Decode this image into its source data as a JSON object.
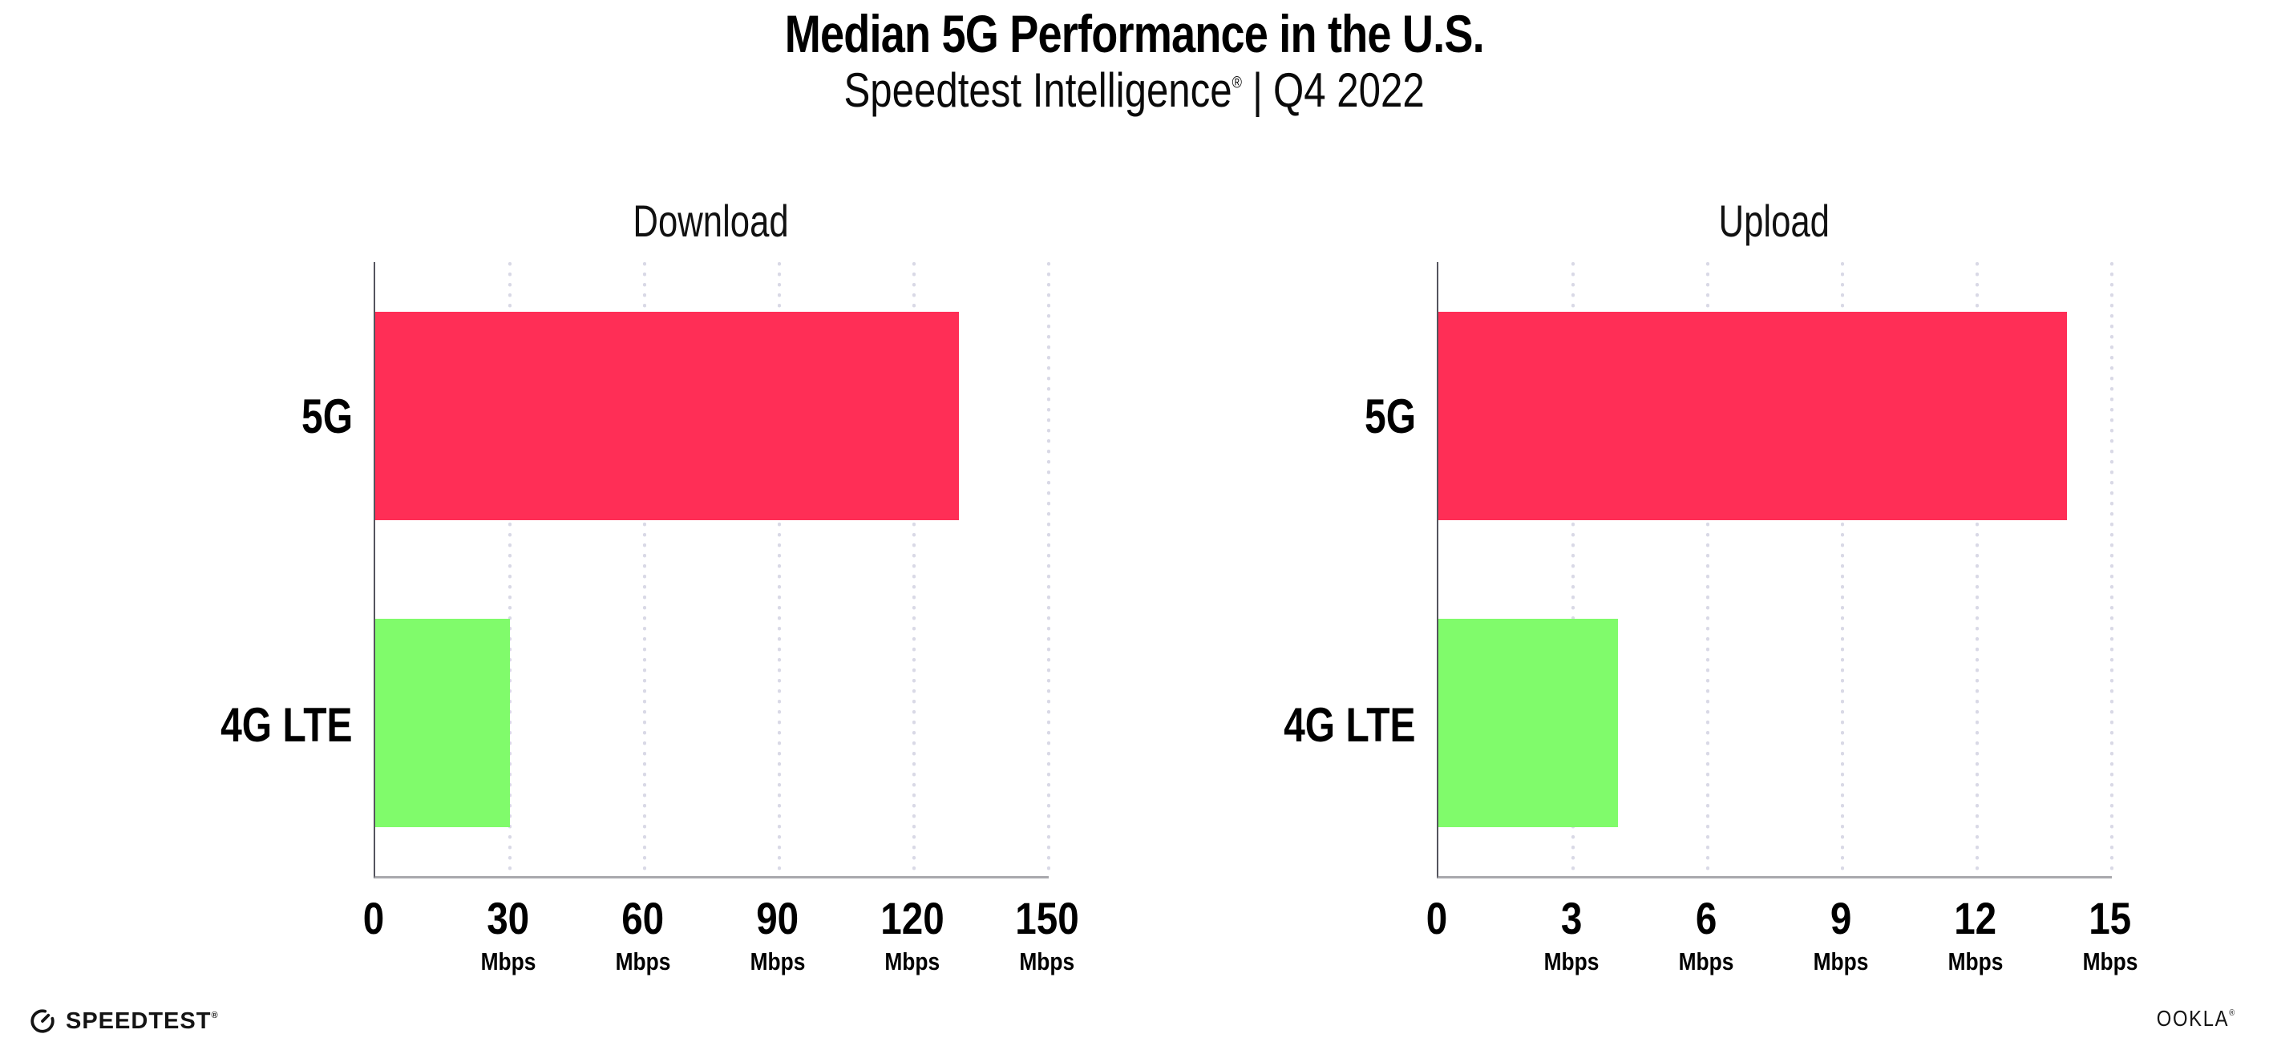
{
  "header": {
    "title": "Median 5G Performance in the U.S.",
    "subtitle_product": "Speedtest Intelligence",
    "subtitle_registered_mark": "®",
    "subtitle_separator": "|",
    "subtitle_period": "Q4 2022"
  },
  "chart_data": [
    {
      "type": "bar",
      "orientation": "horizontal",
      "title": "Download",
      "categories": [
        "5G",
        "4G LTE"
      ],
      "values": [
        130,
        30
      ],
      "value_unit": "Mbps",
      "xlim": [
        0,
        150
      ],
      "xticks": [
        0,
        30,
        60,
        90,
        120,
        150
      ],
      "tick_unit": "Mbps",
      "bar_colors": [
        "#FF2E56",
        "#80FB6B"
      ],
      "grid": "vertical-dotted",
      "legend": "none"
    },
    {
      "type": "bar",
      "orientation": "horizontal",
      "title": "Upload",
      "categories": [
        "5G",
        "4G LTE"
      ],
      "values": [
        14,
        4
      ],
      "value_unit": "Mbps",
      "xlim": [
        0,
        15
      ],
      "xticks": [
        0,
        3,
        6,
        9,
        12,
        15
      ],
      "tick_unit": "Mbps",
      "bar_colors": [
        "#FF2E56",
        "#80FB6B"
      ],
      "grid": "vertical-dotted",
      "legend": "none"
    }
  ],
  "footer": {
    "speedtest_logo_text": "SPEEDTEST",
    "speedtest_trademark": "®",
    "ookla_logo_text": "OOKLA",
    "ookla_trademark": "®"
  },
  "colors": {
    "background": "#FFFFFF",
    "bar_5g": "#FF2E56",
    "bar_4g_lte": "#80FB6B",
    "gridline": "#DBDBE7",
    "axis_vertical": "#55555E",
    "axis_horizontal": "#A9A9AD",
    "text": "#000000"
  }
}
